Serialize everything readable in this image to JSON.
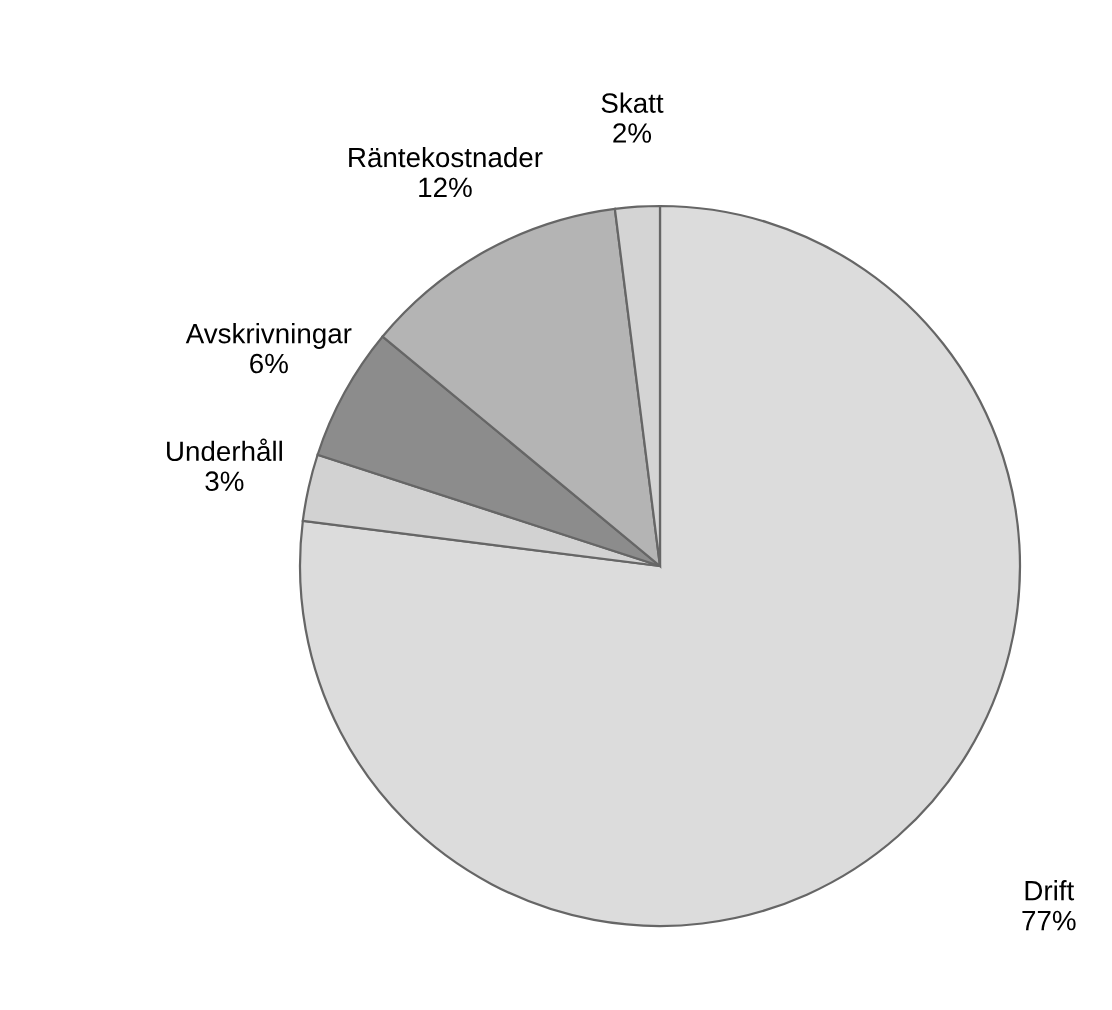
{
  "chart_data": {
    "type": "pie",
    "categories": [
      "Drift",
      "Underhåll",
      "Avskrivningar",
      "Räntekostnader",
      "Skatt"
    ],
    "values": [
      77,
      3,
      6,
      12,
      2
    ],
    "value_labels": [
      "77%",
      "3%",
      "6%",
      "12%",
      "2%"
    ],
    "colors": [
      "#dcdcdc",
      "#d2d2d2",
      "#8c8c8c",
      "#b4b4b4",
      "#d4d4d4"
    ]
  }
}
